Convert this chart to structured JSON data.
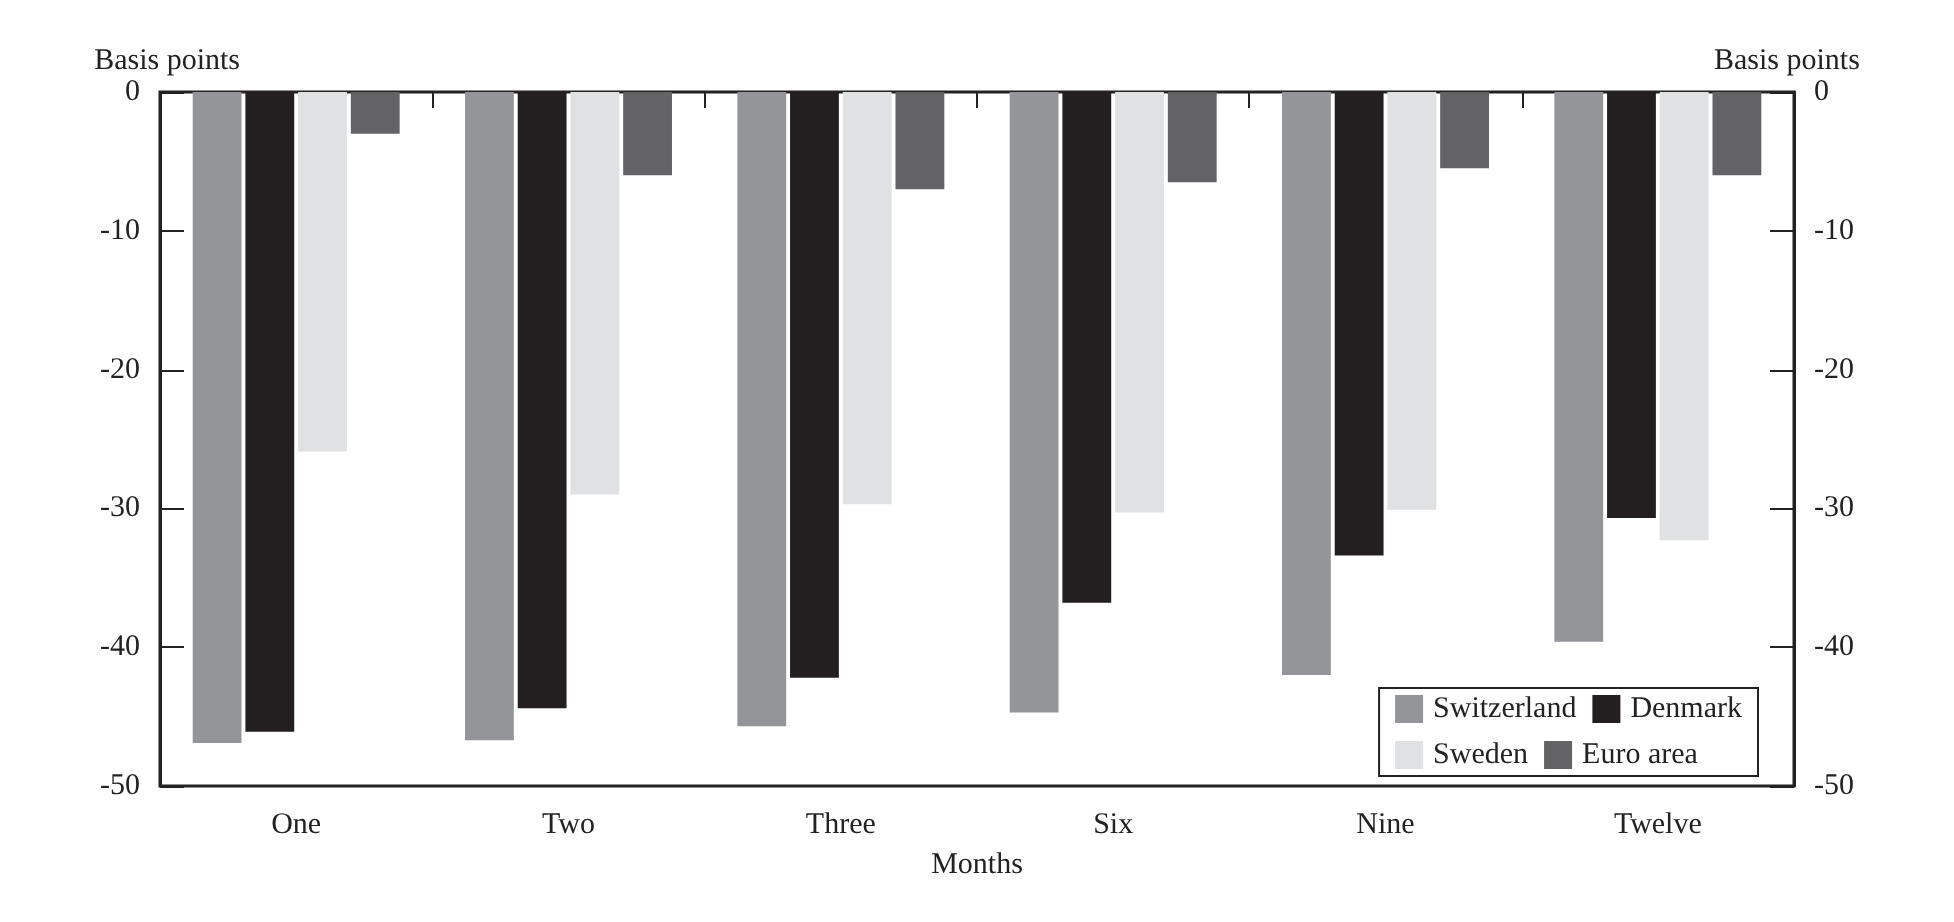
{
  "chart_data": {
    "type": "bar",
    "xlabel": "Months",
    "ylabel": "Basis points",
    "y2label": "Basis points",
    "categories": [
      "One",
      "Two",
      "Three",
      "Six",
      "Nine",
      "Twelve"
    ],
    "series": [
      {
        "name": "Switzerland",
        "color": "#939598",
        "values": [
          -46.9,
          -46.7,
          -45.7,
          -44.7,
          -42.0,
          -39.6
        ]
      },
      {
        "name": "Denmark",
        "color": "#231f20",
        "values": [
          -46.1,
          -44.4,
          -42.2,
          -36.8,
          -33.4,
          -30.7
        ]
      },
      {
        "name": "Sweden",
        "color": "#e0e1e2",
        "values": [
          -25.9,
          -29.0,
          -29.7,
          -30.3,
          -30.1,
          -32.3
        ]
      },
      {
        "name": "Euro area",
        "color": "#636365",
        "values": [
          -3.0,
          -6.0,
          -7.0,
          -6.5,
          -5.5,
          -6.0
        ]
      }
    ],
    "ylim": [
      -50,
      0
    ],
    "yticks": [
      -50,
      -40,
      -30,
      -20,
      -10,
      0
    ],
    "y2lim": [
      -50,
      0
    ],
    "y2ticks": [
      -50,
      -40,
      -30,
      -20,
      -10,
      0
    ],
    "legend": "bottom right",
    "grid": false
  }
}
